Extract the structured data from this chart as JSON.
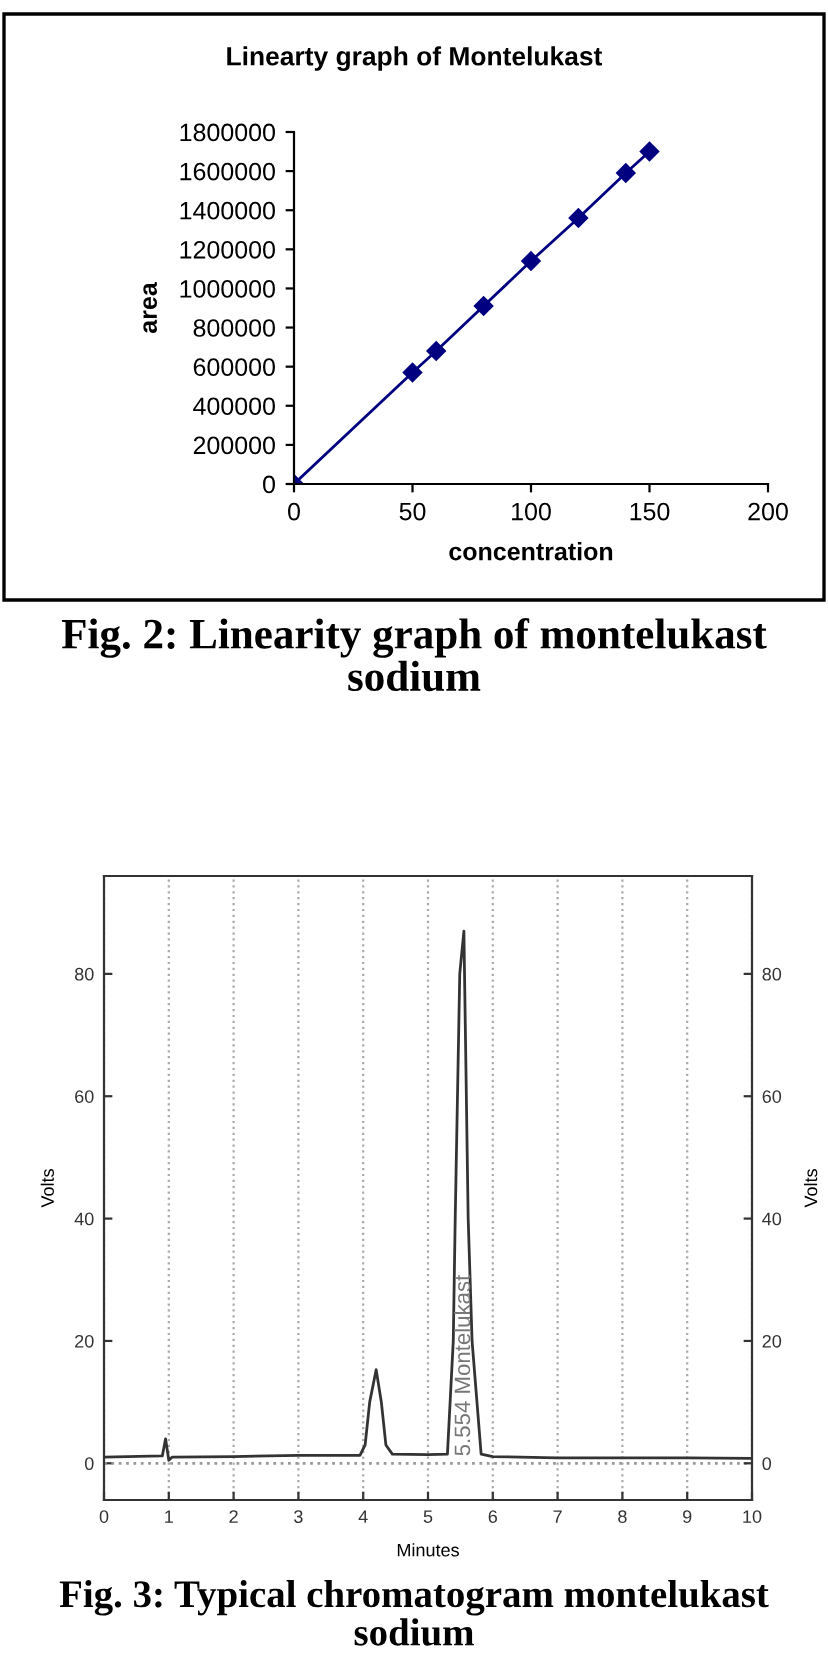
{
  "chart_data": [
    {
      "type": "line",
      "title": "Linearty graph of Montelukast",
      "xlabel": "concentration",
      "ylabel": "area",
      "x": [
        0,
        50,
        60,
        80,
        100,
        120,
        140,
        150
      ],
      "series": [
        {
          "color": "#000080",
          "values": [
            0,
            570000,
            680000,
            910000,
            1140000,
            1360000,
            1590000,
            1700000
          ]
        }
      ],
      "marker": "diamond",
      "xlim": [
        0,
        200
      ],
      "xticks": [
        0,
        50,
        100,
        150,
        200
      ],
      "ylim": [
        0,
        1800000
      ],
      "yticks": [
        0,
        200000,
        400000,
        600000,
        800000,
        1000000,
        1200000,
        1400000,
        1600000,
        1800000
      ],
      "annotations": [
        "Fig. 2: Linearity graph of montelukast sodium"
      ]
    },
    {
      "type": "line",
      "xlabel": "Minutes",
      "ylabel": "Volts",
      "y2label": "Volts",
      "series": [
        {
          "color": "#333333",
          "x": [
            0,
            0.9,
            0.95,
            1.0,
            1.05,
            2,
            3,
            3.95,
            4.03,
            4.1,
            4.2,
            4.28,
            4.35,
            4.45,
            5,
            5.3,
            5.39,
            5.42,
            5.49,
            5.554,
            5.62,
            5.68,
            5.82,
            6,
            7,
            8,
            9,
            10
          ],
          "values": [
            1.0,
            1.2,
            4.0,
            0.5,
            1.0,
            1.1,
            1.3,
            1.3,
            3,
            10,
            15.3,
            10,
            3,
            1.5,
            1.4,
            1.5,
            20,
            40,
            80,
            87,
            40,
            20,
            1.5,
            1.1,
            0.9,
            0.9,
            0.9,
            0.8
          ]
        },
        {
          "color": "#999999",
          "line_style": "dotted",
          "x": [
            0,
            10
          ],
          "values": [
            0,
            0
          ]
        }
      ],
      "xlim": [
        0,
        10
      ],
      "xticks": [
        0,
        1,
        2,
        3,
        4,
        5,
        6,
        7,
        8,
        9,
        10
      ],
      "ylim": [
        -6,
        96
      ],
      "yticks": [
        0,
        20,
        40,
        60,
        80
      ],
      "y2lim": [
        -6,
        96
      ],
      "y2ticks": [
        0,
        20,
        40,
        60,
        80
      ],
      "grid": "x",
      "annotations": [
        "5.554 Montelukast",
        "Fig. 3: Typical chromatogram montelukast sodium"
      ]
    }
  ]
}
